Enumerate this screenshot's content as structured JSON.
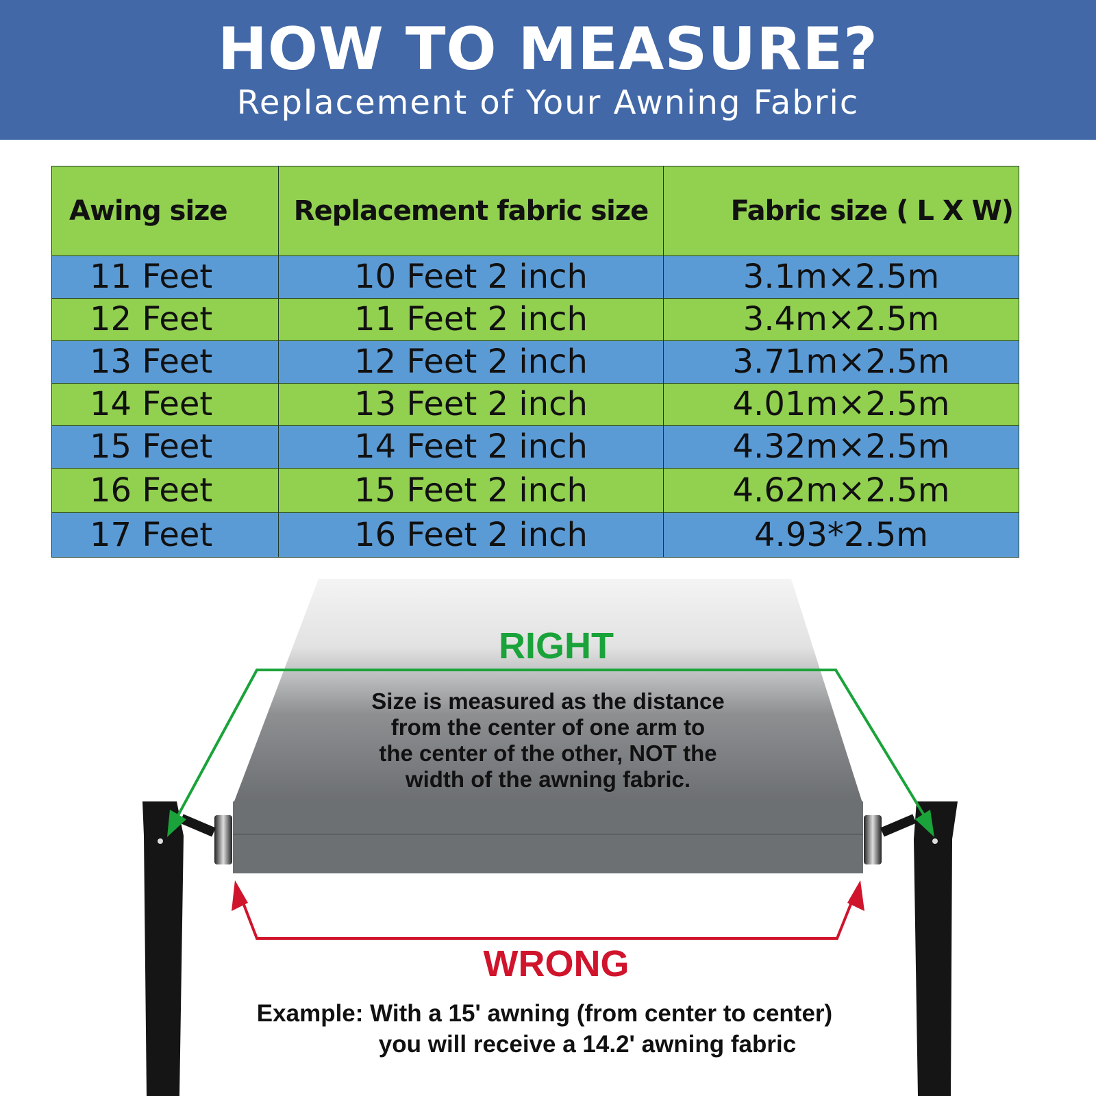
{
  "banner": {
    "title": "HOW TO MEASURE?",
    "subtitle": "Replacement of Your Awning Fabric",
    "color": "#4268a7"
  },
  "table": {
    "headers": [
      "Awing size",
      "Replacement fabric size",
      "Fabric size ( L X W)"
    ],
    "rows": [
      [
        "11 Feet",
        "10 Feet 2 inch",
        "3.1m×2.5m"
      ],
      [
        "12 Feet",
        "11 Feet 2 inch",
        "3.4m×2.5m"
      ],
      [
        "13 Feet",
        "12 Feet 2 inch",
        "3.71m×2.5m"
      ],
      [
        "14 Feet",
        "13 Feet 2 inch",
        "4.01m×2.5m"
      ],
      [
        "15 Feet",
        "14 Feet 2 inch",
        "4.32m×2.5m"
      ],
      [
        "16 Feet",
        "15 Feet 2 inch",
        "4.62m×2.5m"
      ],
      [
        "17 Feet",
        "16 Feet 2 inch",
        "4.93*2.5m"
      ]
    ],
    "colors": {
      "green": "#92d050",
      "blue": "#5b9bd5"
    }
  },
  "illustration": {
    "right_label": "RIGHT",
    "right_color": "#1aa33a",
    "explanation": [
      "Size is measured as the distance",
      "from the center of one arm to",
      "the center of the other, NOT the",
      "width of the awning fabric."
    ],
    "wrong_label": "WRONG",
    "wrong_color": "#d0142c",
    "example": [
      "Example: With a 15' awning (from center to center)",
      "you will receive a 14.2' awning fabric"
    ]
  }
}
